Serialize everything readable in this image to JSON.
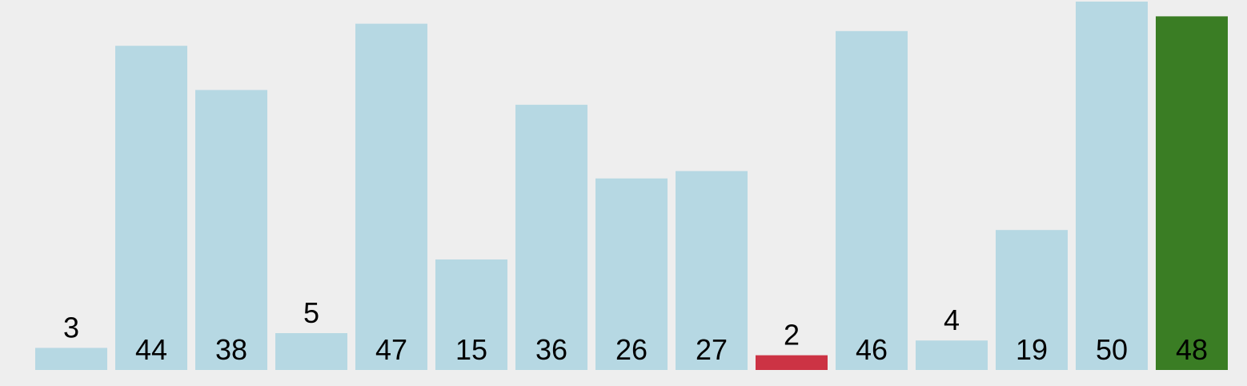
{
  "chart_data": {
    "type": "bar",
    "values": [
      3,
      44,
      38,
      5,
      47,
      15,
      36,
      26,
      27,
      2,
      46,
      4,
      19,
      50,
      48
    ],
    "labels": [
      "3",
      "44",
      "38",
      "5",
      "47",
      "15",
      "36",
      "26",
      "27",
      "2",
      "46",
      "4",
      "19",
      "50",
      "48"
    ],
    "bar_colors": [
      "#b6d8e3",
      "#b6d8e3",
      "#b6d8e3",
      "#b6d8e3",
      "#b6d8e3",
      "#b6d8e3",
      "#b6d8e3",
      "#b6d8e3",
      "#b6d8e3",
      "#cc3344",
      "#b6d8e3",
      "#b6d8e3",
      "#b6d8e3",
      "#b6d8e3",
      "#3a7d24"
    ],
    "ylim": [
      0,
      50
    ],
    "grid": false,
    "legend": "none",
    "title": "",
    "xlabel": "",
    "ylabel": ""
  },
  "colors": {
    "background": "#eeeeee",
    "default_bar": "#b6d8e3",
    "highlight_red": "#cc3344",
    "highlight_green": "#3a7d24",
    "label_text": "#000000"
  }
}
